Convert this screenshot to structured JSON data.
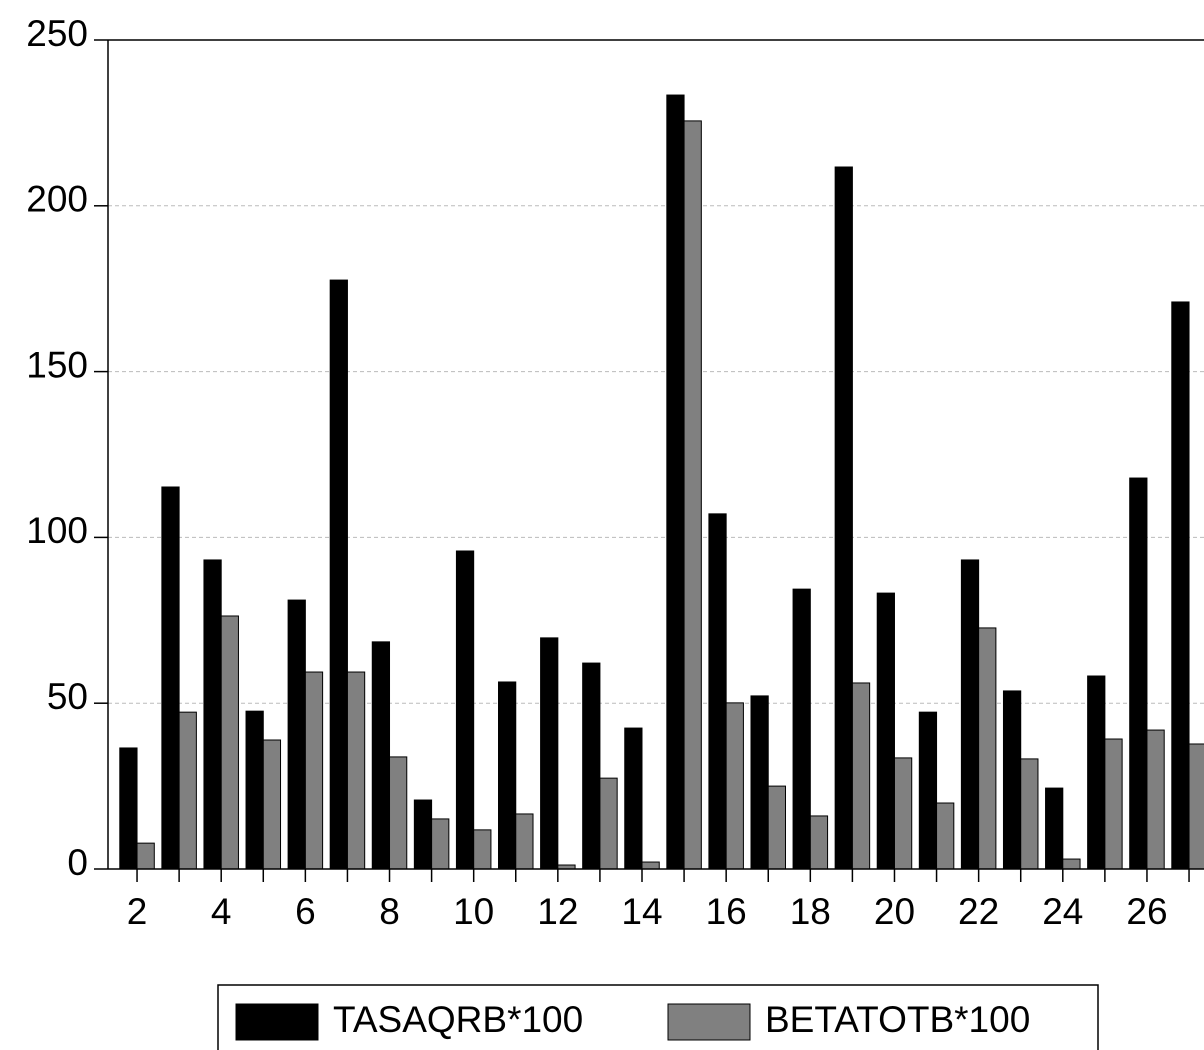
{
  "chart_data": {
    "type": "bar",
    "categories": [
      "2",
      null,
      "4",
      null,
      "6",
      null,
      "8",
      null,
      "10",
      null,
      "12",
      null,
      "14",
      null,
      "16",
      null,
      "18",
      null,
      "20",
      null,
      "22",
      null,
      "24",
      null,
      "26",
      null
    ],
    "series": [
      {
        "name": "TASAQRB*100",
        "color": "#000000",
        "values": [
          36.5,
          115.2,
          93.2,
          47.6,
          81.1,
          177.6,
          68.5,
          20.8,
          95.9,
          56.4,
          69.7,
          62.1,
          42.5,
          233.4,
          107.1,
          52.2,
          84.4,
          211.7,
          83.2,
          47.3,
          93.2,
          53.7,
          24.4,
          58.2,
          117.9,
          171.0
        ]
      },
      {
        "name": "BETATOTB*100",
        "color": "#808080",
        "values": [
          7.8,
          47.3,
          76.3,
          38.9,
          59.4,
          59.4,
          33.8,
          15.1,
          11.8,
          16.6,
          1.2,
          27.4,
          2.1,
          225.6,
          50.1,
          25.0,
          16.0,
          56.1,
          33.5,
          19.9,
          72.7,
          33.2,
          3.0,
          39.2,
          41.9,
          37.7
        ]
      }
    ],
    "ylim": [
      0,
      250
    ],
    "yticks": [
      0,
      50,
      100,
      150,
      200,
      250
    ],
    "grid": true,
    "legend": "bottom"
  }
}
